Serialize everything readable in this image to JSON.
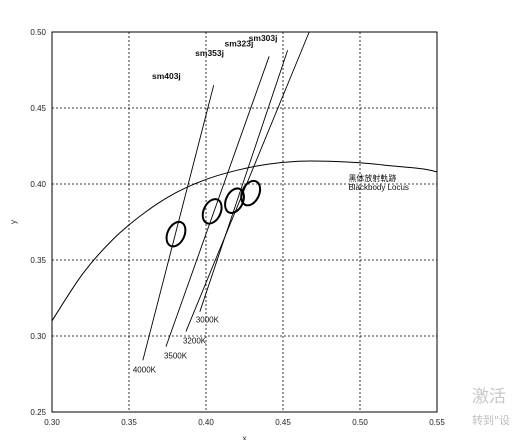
{
  "chart_data": {
    "type": "scatter",
    "title": "",
    "xlabel": "x",
    "ylabel": "y",
    "xlim": [
      0.3,
      0.55
    ],
    "ylim": [
      0.25,
      0.5
    ],
    "grid": true,
    "x_ticks": [
      "0.30",
      "0.35",
      "0.40",
      "0.45",
      "0.50",
      "0.55"
    ],
    "y_ticks": [
      "0.25",
      "0.30",
      "0.35",
      "0.40",
      "0.45",
      "0.50"
    ],
    "blackbody_locus": {
      "label_cn": "黑体放射軌跡",
      "label_en": "Blackbody Locus",
      "points": [
        [
          0.3,
          0.31
        ],
        [
          0.32,
          0.341
        ],
        [
          0.34,
          0.364
        ],
        [
          0.36,
          0.381
        ],
        [
          0.38,
          0.394
        ],
        [
          0.4,
          0.403
        ],
        [
          0.42,
          0.409
        ],
        [
          0.44,
          0.413
        ],
        [
          0.46,
          0.415
        ],
        [
          0.48,
          0.415
        ],
        [
          0.5,
          0.414
        ],
        [
          0.52,
          0.412
        ],
        [
          0.54,
          0.41
        ],
        [
          0.55,
          0.408
        ]
      ]
    },
    "isotherms": [
      {
        "label": "4000K",
        "from": [
          0.359,
          0.284
        ],
        "to": [
          0.405,
          0.465
        ]
      },
      {
        "label": "3500K",
        "from": [
          0.374,
          0.293
        ],
        "to": [
          0.441,
          0.484
        ]
      },
      {
        "label": "3200K",
        "from": [
          0.387,
          0.303
        ],
        "to": [
          0.467,
          0.5
        ]
      },
      {
        "label": "3000K",
        "from": [
          0.396,
          0.316
        ],
        "to": [
          0.453,
          0.488
        ]
      }
    ],
    "ellipses": [
      {
        "label": "sm403j",
        "cx": 0.3805,
        "cy": 0.367,
        "rx": 0.0055,
        "ry": 0.0085,
        "angle": 25
      },
      {
        "label": "sm353j",
        "cx": 0.404,
        "cy": 0.382,
        "rx": 0.0055,
        "ry": 0.0085,
        "angle": 25
      },
      {
        "label": "sm323j",
        "cx": 0.4185,
        "cy": 0.389,
        "rx": 0.0055,
        "ry": 0.0085,
        "angle": 25
      },
      {
        "label": "sm303j",
        "cx": 0.429,
        "cy": 0.394,
        "rx": 0.0055,
        "ry": 0.0085,
        "angle": 25
      }
    ]
  },
  "watermark": {
    "line1": "激活",
    "line2": "转到\"设"
  }
}
